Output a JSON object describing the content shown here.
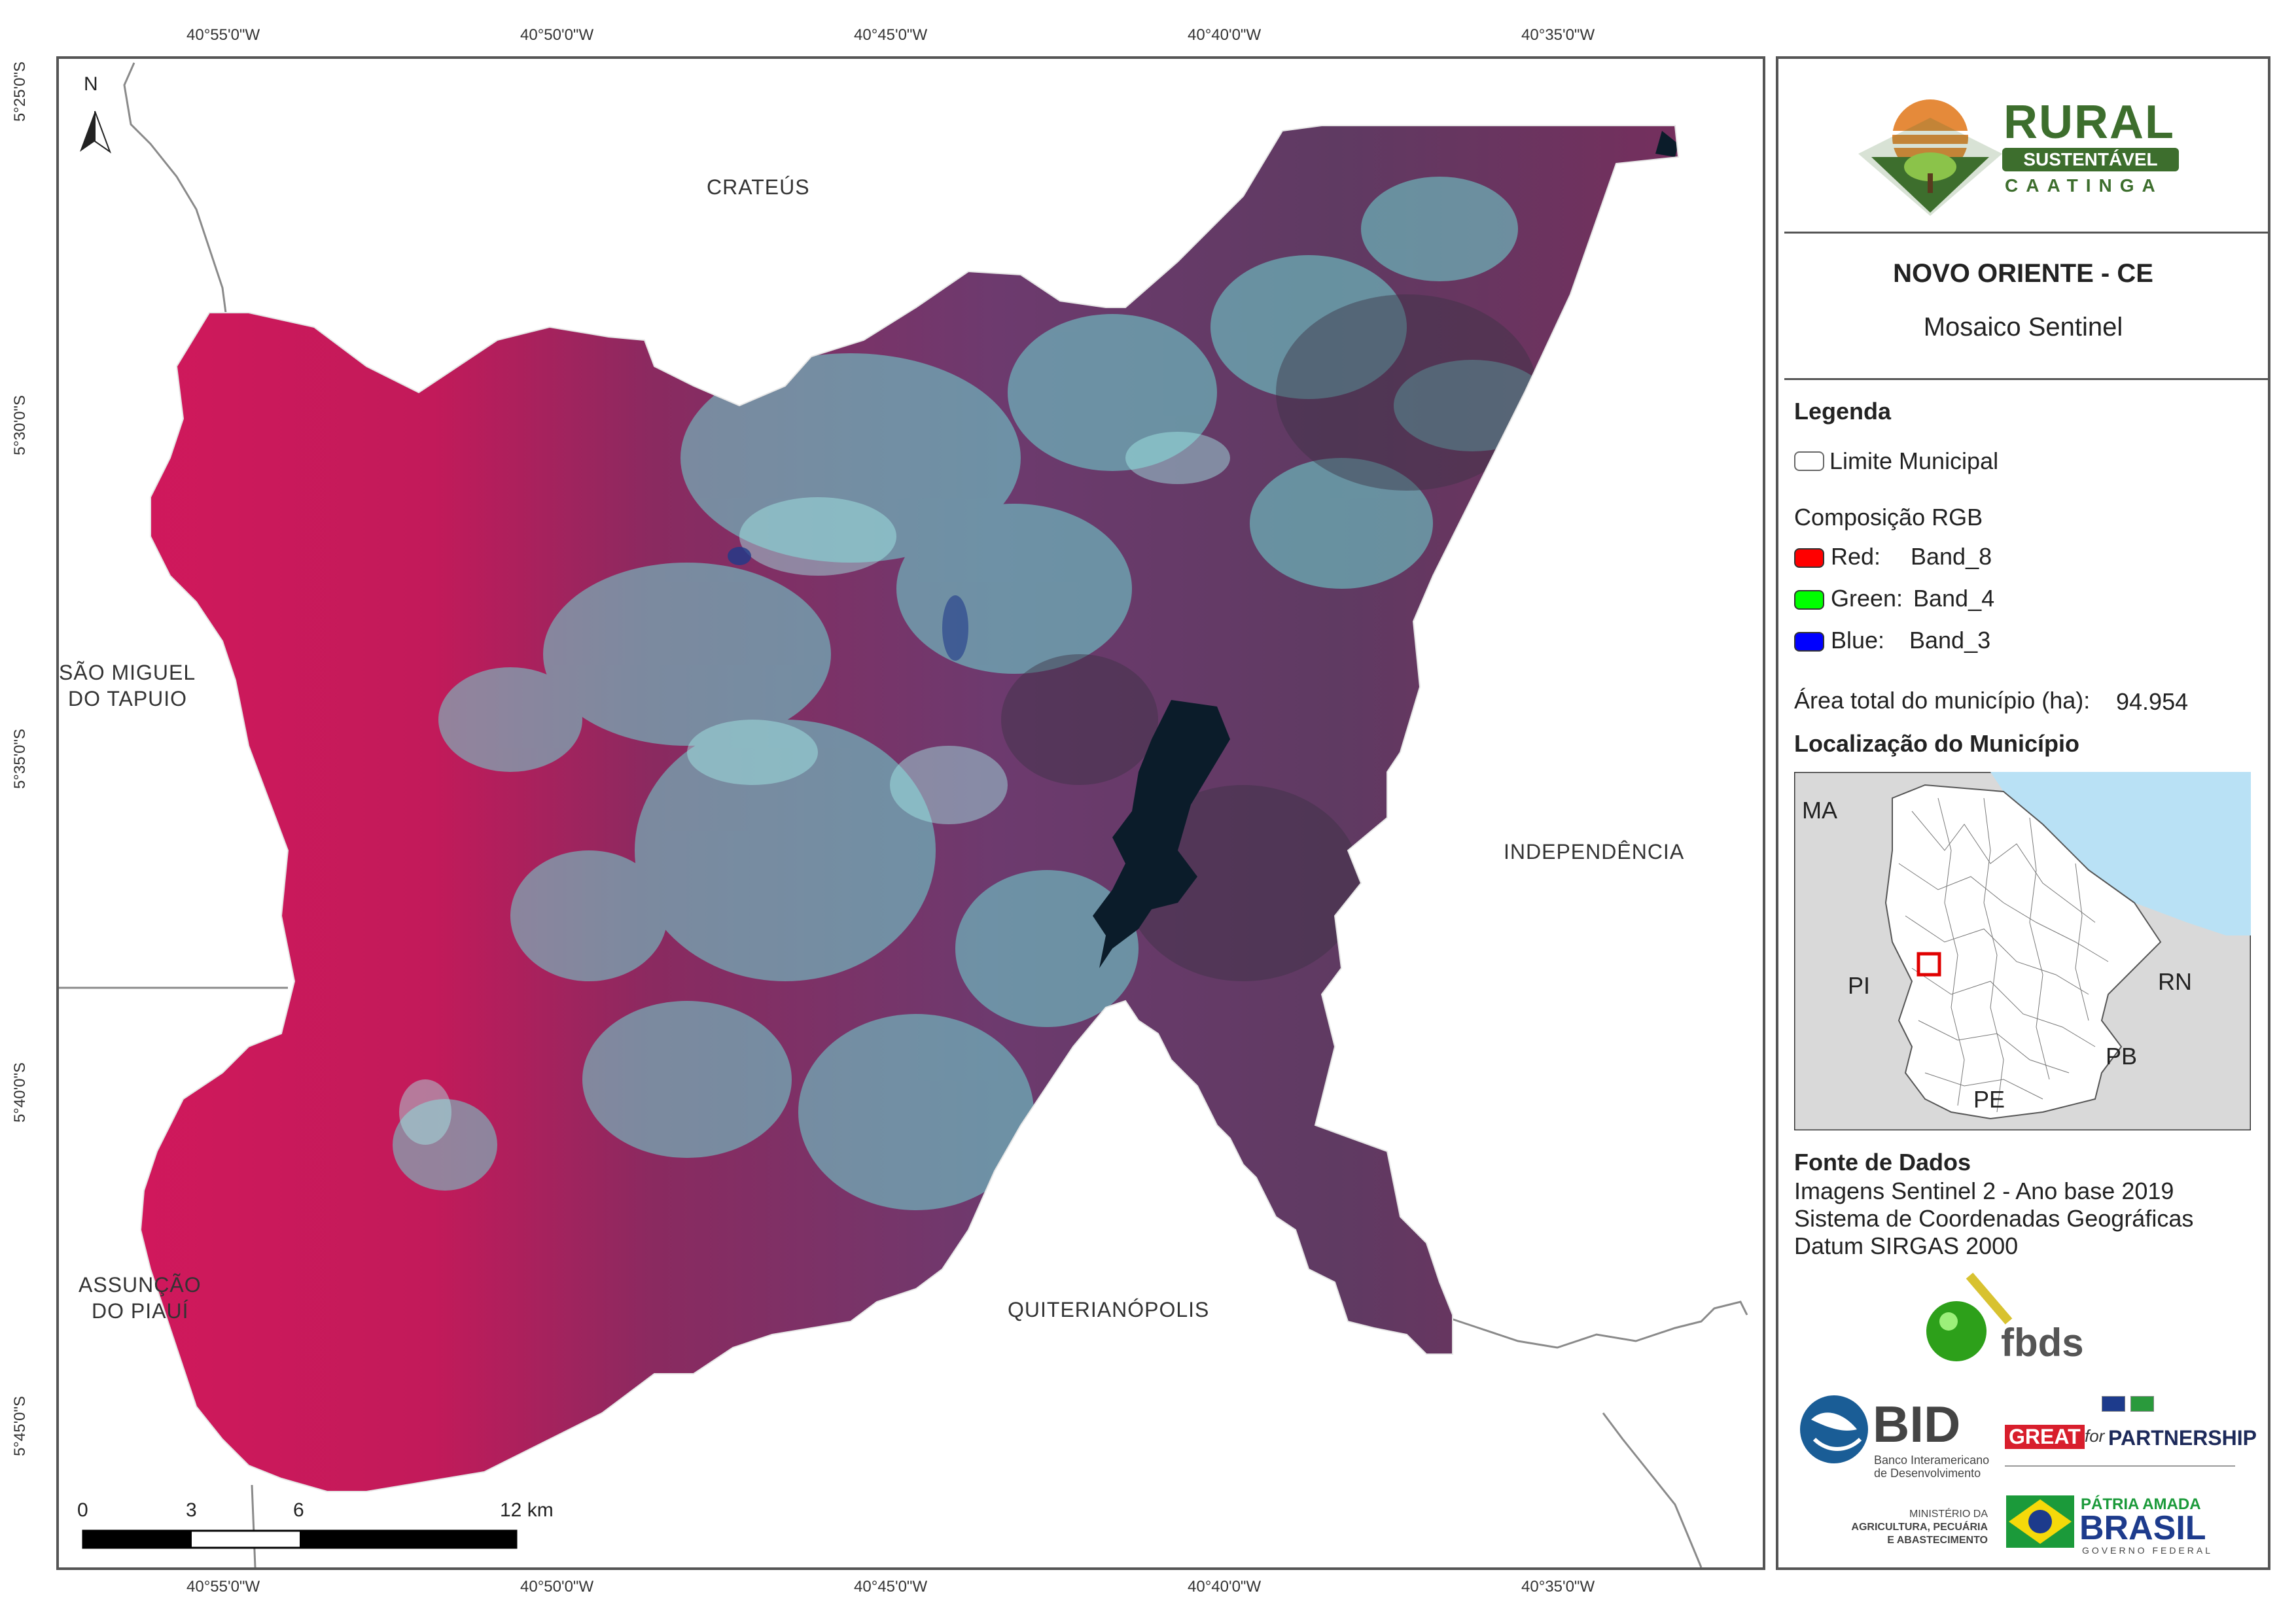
{
  "grid": {
    "top_labels": [
      "40°55'0\"W",
      "40°50'0\"W",
      "40°45'0\"W",
      "40°40'0\"W",
      "40°35'0\"W"
    ],
    "bottom_labels": [
      "40°55'0\"W",
      "40°50'0\"W",
      "40°45'0\"W",
      "40°40'0\"W",
      "40°35'0\"W"
    ],
    "left_labels": [
      "5°25'0\"S",
      "5°30'0\"S",
      "5°35'0\"S",
      "5°40'0\"S",
      "5°45'0\"S"
    ]
  },
  "map": {
    "north_label": "N",
    "places": {
      "crateus": "CRATEÚS",
      "sao_miguel": [
        "SÃO MIGUEL",
        "DO TAPUIO"
      ],
      "independencia": "INDEPENDÊNCIA",
      "assuncao": [
        "ASSUNÇÃO",
        "DO PIAUÍ"
      ],
      "quiterianopolis": "QUITERIANÓPOLIS"
    },
    "scalebar": {
      "labels": [
        "0",
        "3",
        "6",
        "12 km"
      ]
    }
  },
  "panel": {
    "logo": {
      "line1": "RURAL",
      "line2": "SUSTENTÁVEL",
      "line3": "CAATINGA"
    },
    "title": "NOVO ORIENTE - CE",
    "subtitle": "Mosaico Sentinel",
    "legend": {
      "heading": "Legenda",
      "boundary_label": "Limite Municipal",
      "rgb_heading": "Composição RGB",
      "rgb": [
        {
          "channel": "Red:",
          "band": "Band_8",
          "color": "#ff0000"
        },
        {
          "channel": "Green:",
          "band": "Band_4",
          "color": "#00ff00"
        },
        {
          "channel": "Blue:",
          "band": "Band_3",
          "color": "#0000ff"
        }
      ],
      "area_label": "Área total do município (ha):",
      "area_value": "94.954"
    },
    "location": {
      "heading": "Localização do Município",
      "states": [
        "MA",
        "PI",
        "RN",
        "PB",
        "PE"
      ]
    },
    "sources": {
      "heading": "Fonte de Dados",
      "lines": [
        "Imagens Sentinel 2 - Ano base 2019",
        "Sistema de Coordenadas Geográficas",
        "Datum SIRGAS 2000"
      ]
    },
    "logos": {
      "fbds": "fbds",
      "bid": "BID",
      "bid_sub": [
        "Banco Interamericano",
        "de Desenvolvimento"
      ],
      "great": "GREAT",
      "for": "for",
      "partnership": "PARTNERSHIP",
      "ministerio": [
        "MINISTÉRIO DA",
        "AGRICULTURA, PECUÁRIA",
        "E ABASTECIMENTO"
      ],
      "patria": "PÁTRIA AMADA",
      "brasil": "BRASIL",
      "governo": "GOVERNO FEDERAL"
    }
  },
  "colors": {
    "vegetation": "#d0185a",
    "mixed": "#7a2a5e",
    "bare": "#6fd9d4",
    "water": "#0b1c2a",
    "ocean": "#b9e1f5",
    "logo_green": "#3d6e2d"
  }
}
